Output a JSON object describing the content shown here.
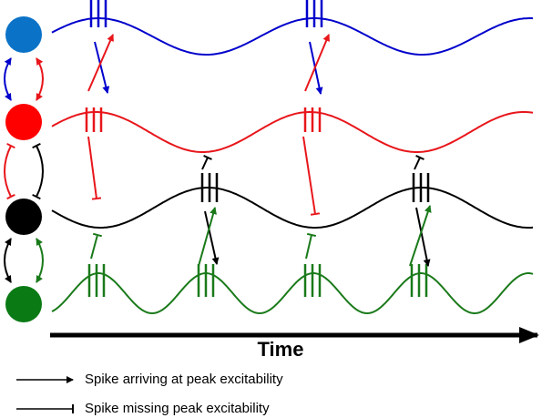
{
  "axis": {
    "label": "Time"
  },
  "legend": [
    {
      "label": "Spike arriving at peak excitability"
    },
    {
      "label": "Spike missing peak excitability"
    }
  ]
}
